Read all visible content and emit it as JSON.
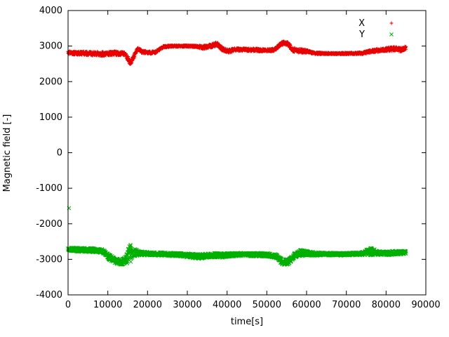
{
  "chart_data": {
    "type": "scatter",
    "title": "",
    "xlabel": "time[s]",
    "ylabel": "Magnetic field [-]",
    "xlim": [
      0,
      90000
    ],
    "ylim": [
      -4000,
      4000
    ],
    "x_ticks": [
      0,
      10000,
      20000,
      30000,
      40000,
      50000,
      60000,
      70000,
      80000,
      90000
    ],
    "y_ticks": [
      -4000,
      -3000,
      -2000,
      -1000,
      0,
      1000,
      2000,
      3000,
      4000
    ],
    "grid": false,
    "legend_position": "top-right-inside",
    "data_t_range": [
      0,
      85000
    ],
    "sample_interval_s": 40,
    "marker_size_px": 2.5,
    "series": [
      {
        "name": "X",
        "color": "#e60000",
        "marker": "plus",
        "anchors": [
          [
            0,
            2810,
            45
          ],
          [
            3000,
            2800,
            50
          ],
          [
            6000,
            2790,
            55
          ],
          [
            9000,
            2780,
            60
          ],
          [
            12000,
            2800,
            55
          ],
          [
            14500,
            2780,
            55
          ],
          [
            15200,
            2600,
            90
          ],
          [
            15800,
            2530,
            80
          ],
          [
            16500,
            2700,
            60
          ],
          [
            17500,
            2920,
            50
          ],
          [
            18500,
            2850,
            45
          ],
          [
            20000,
            2810,
            40
          ],
          [
            22000,
            2830,
            40
          ],
          [
            24000,
            2980,
            30
          ],
          [
            26000,
            3000,
            25
          ],
          [
            30000,
            3000,
            25
          ],
          [
            32500,
            2990,
            30
          ],
          [
            34000,
            2960,
            50
          ],
          [
            36000,
            3010,
            60
          ],
          [
            37500,
            3050,
            65
          ],
          [
            39000,
            2900,
            55
          ],
          [
            40500,
            2860,
            50
          ],
          [
            42000,
            2900,
            45
          ],
          [
            45000,
            2900,
            40
          ],
          [
            48000,
            2890,
            45
          ],
          [
            50000,
            2880,
            40
          ],
          [
            52000,
            2900,
            40
          ],
          [
            53500,
            3060,
            55
          ],
          [
            54500,
            3100,
            50
          ],
          [
            55500,
            3040,
            60
          ],
          [
            56500,
            2900,
            60
          ],
          [
            58000,
            2870,
            60
          ],
          [
            60000,
            2850,
            50
          ],
          [
            62000,
            2800,
            30
          ],
          [
            65000,
            2790,
            25
          ],
          [
            70000,
            2790,
            25
          ],
          [
            74000,
            2800,
            30
          ],
          [
            76000,
            2850,
            45
          ],
          [
            78000,
            2880,
            50
          ],
          [
            80000,
            2900,
            55
          ],
          [
            82000,
            2920,
            60
          ],
          [
            84000,
            2900,
            55
          ],
          [
            85000,
            2950,
            40
          ]
        ],
        "outliers": [
          [
            84700,
            2990
          ]
        ]
      },
      {
        "name": "Y",
        "color": "#00b000",
        "marker": "cross",
        "anchors": [
          [
            0,
            -2720,
            50
          ],
          [
            3000,
            -2730,
            55
          ],
          [
            6000,
            -2740,
            55
          ],
          [
            9000,
            -2780,
            60
          ],
          [
            10500,
            -2950,
            80
          ],
          [
            12000,
            -3050,
            80
          ],
          [
            13500,
            -3080,
            90
          ],
          [
            14500,
            -3010,
            90
          ],
          [
            15500,
            -2850,
            330
          ],
          [
            16300,
            -2800,
            120
          ],
          [
            18000,
            -2830,
            60
          ],
          [
            20000,
            -2840,
            50
          ],
          [
            24000,
            -2850,
            45
          ],
          [
            28000,
            -2870,
            50
          ],
          [
            31000,
            -2900,
            60
          ],
          [
            33000,
            -2920,
            70
          ],
          [
            35000,
            -2900,
            60
          ],
          [
            37000,
            -2880,
            60
          ],
          [
            39000,
            -2900,
            70
          ],
          [
            41000,
            -2870,
            50
          ],
          [
            44000,
            -2860,
            45
          ],
          [
            47000,
            -2870,
            50
          ],
          [
            50000,
            -2870,
            50
          ],
          [
            52500,
            -2920,
            55
          ],
          [
            54000,
            -3090,
            80
          ],
          [
            55500,
            -3060,
            80
          ],
          [
            57000,
            -2880,
            80
          ],
          [
            58500,
            -2820,
            90
          ],
          [
            60000,
            -2830,
            70
          ],
          [
            62000,
            -2850,
            50
          ],
          [
            65000,
            -2850,
            40
          ],
          [
            68000,
            -2860,
            40
          ],
          [
            71000,
            -2850,
            40
          ],
          [
            74000,
            -2840,
            45
          ],
          [
            76000,
            -2780,
            110
          ],
          [
            78000,
            -2820,
            60
          ],
          [
            80000,
            -2830,
            55
          ],
          [
            82000,
            -2820,
            60
          ],
          [
            84000,
            -2810,
            50
          ],
          [
            85000,
            -2800,
            40
          ]
        ],
        "outliers": [
          [
            250,
            -1560
          ]
        ]
      }
    ]
  }
}
